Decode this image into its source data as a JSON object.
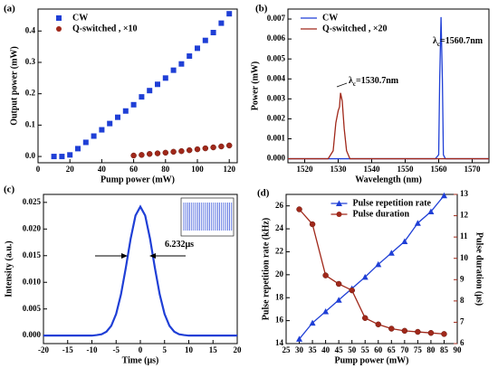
{
  "chart_data": [
    {
      "type": "scatter",
      "panel_label": "(a)",
      "xlabel": "Pump power (mW)",
      "ylabel": "Output power (mW)",
      "xlim": [
        0,
        125
      ],
      "xticks": [
        0,
        20,
        40,
        60,
        80,
        100,
        120
      ],
      "ylim": [
        -0.02,
        0.47
      ],
      "yticks": [
        {
          "value": 0,
          "label": "0.0"
        },
        0.1,
        0.2,
        0.3,
        0.4
      ],
      "legend": "upper left",
      "series": [
        {
          "name": "CW",
          "color": "#1f3fd6",
          "marker": "square",
          "x": [
            10,
            15,
            20,
            25,
            30,
            35,
            40,
            45,
            50,
            55,
            60,
            65,
            70,
            75,
            80,
            85,
            90,
            95,
            100,
            105,
            110,
            115,
            120
          ],
          "values": [
            0,
            0,
            0.005,
            0.025,
            0.045,
            0.065,
            0.085,
            0.105,
            0.125,
            0.145,
            0.165,
            0.19,
            0.21,
            0.23,
            0.25,
            0.275,
            0.295,
            0.32,
            0.345,
            0.37,
            0.395,
            0.425,
            0.455
          ]
        },
        {
          "name": "Q-switched , ×10",
          "color": "#a0281a",
          "marker": "circle",
          "x": [
            60,
            65,
            70,
            75,
            80,
            85,
            90,
            95,
            100,
            105,
            110,
            115,
            120
          ],
          "values": [
            0.003,
            0.005,
            0.008,
            0.01,
            0.012,
            0.015,
            0.017,
            0.02,
            0.023,
            0.026,
            0.029,
            0.032,
            0.035
          ]
        }
      ]
    },
    {
      "type": "line",
      "panel_label": "(b)",
      "xlabel": "Wavelength (nm)",
      "ylabel": "Power (mW)",
      "xlim": [
        1515,
        1575
      ],
      "xticks": [
        1520,
        1530,
        1540,
        1550,
        1560,
        1570
      ],
      "ylim": [
        -0.0002,
        0.0075
      ],
      "yticks": [
        {
          "value": 0,
          "label": "0.000"
        },
        0.001,
        0.002,
        0.003,
        0.004,
        0.005,
        0.006,
        0.007
      ],
      "legend": "upper left",
      "series": [
        {
          "name": "CW",
          "color": "#1f3fd6",
          "x": [
            1515,
            1559,
            1560,
            1560.3,
            1560.7,
            1561.1,
            1561.4,
            1562,
            1575
          ],
          "values": [
            0,
            0,
            0.0002,
            0.004,
            0.0071,
            0.004,
            0.0002,
            0,
            0
          ]
        },
        {
          "name": "Q-switched , ×20",
          "color": "#a0281a",
          "x": [
            1515,
            1527,
            1528.5,
            1529.3,
            1530,
            1530.4,
            1530.7,
            1531.2,
            1531.8,
            1532.5,
            1533.5,
            1575
          ],
          "values": [
            0,
            0,
            0.0004,
            0.0018,
            0.0024,
            0.0026,
            0.0033,
            0.0029,
            0.0015,
            0.0004,
            0,
            0
          ]
        }
      ],
      "annotations": [
        {
          "symbol": "λ",
          "sub": "c",
          "text": "=1560.7nm"
        },
        {
          "symbol": "λ",
          "sub": "c",
          "text": "=1530.7nm"
        }
      ]
    },
    {
      "type": "line",
      "panel_label": "(c)",
      "xlabel": "Time (μs)",
      "ylabel": "Intensity (a.u.)",
      "xlim": [
        -20,
        20
      ],
      "xticks": [
        -20,
        -15,
        -10,
        -5,
        0,
        5,
        10,
        15,
        20
      ],
      "ylim": [
        -0.0015,
        0.0265
      ],
      "yticks": [
        {
          "value": 0,
          "label": "0.000"
        },
        0.005,
        {
          "value": 0.01,
          "label": "0.010"
        },
        0.015,
        {
          "value": 0.02,
          "label": "0.020"
        },
        0.025
      ],
      "x": [
        -20,
        -19,
        -18,
        -17,
        -16,
        -15,
        -14,
        -13,
        -12,
        -11,
        -10,
        -9,
        -8,
        -7,
        -6,
        -5,
        -4,
        -3,
        -2,
        -1,
        0,
        1,
        2,
        3,
        4,
        5,
        6,
        7,
        8,
        9,
        10,
        11,
        12,
        13,
        14,
        15,
        16,
        17,
        18,
        19,
        20
      ],
      "series": [
        {
          "color": "#1f3fd6",
          "values": [
            0,
            0,
            0,
            0,
            0,
            0,
            0,
            0,
            0,
            0,
            0,
            0.0001,
            0.00025,
            0.00073,
            0.00185,
            0.00406,
            0.00772,
            0.01273,
            0.01819,
            0.02253,
            0.0242,
            0.02253,
            0.01819,
            0.01273,
            0.00772,
            0.00406,
            0.00185,
            0.00073,
            0.00025,
            0.0001,
            0,
            0,
            0,
            0,
            0,
            0,
            0,
            0,
            0,
            0,
            0
          ]
        }
      ],
      "annotations": [
        {
          "text": "6.232μs"
        }
      ]
    },
    {
      "type": "line",
      "panel_label": "(d)",
      "xlabel": "Pump power (mW)",
      "ylabel": "Pulse repetition rate (kHz)",
      "y2label": "Pulse duration (μs)",
      "xlim": [
        25,
        90
      ],
      "xticks": [
        25,
        30,
        35,
        40,
        45,
        50,
        55,
        60,
        65,
        70,
        75,
        80,
        85,
        90
      ],
      "ylim": [
        14,
        27
      ],
      "yticks": [
        14,
        16,
        18,
        20,
        22,
        24,
        26
      ],
      "y2lim": [
        6,
        13
      ],
      "y2ticks": [
        6,
        7,
        8,
        9,
        10,
        11,
        12,
        13
      ],
      "legend": "upper center",
      "x": [
        30,
        35,
        40,
        45,
        50,
        55,
        60,
        65,
        70,
        75,
        80,
        85
      ],
      "series": [
        {
          "name": "Pulse repetition rate",
          "color": "#1f3fd6",
          "marker": "triangle",
          "values": [
            14.4,
            15.8,
            16.8,
            17.8,
            18.8,
            19.8,
            20.9,
            21.9,
            22.9,
            24.5,
            25.5,
            26.9
          ]
        },
        {
          "name": "Pulse duration",
          "color": "#a0281a",
          "marker": "circle",
          "axis": "y2",
          "values": [
            12.3,
            11.6,
            9.2,
            8.8,
            8.5,
            7.2,
            6.9,
            6.7,
            6.6,
            6.55,
            6.5,
            6.45
          ]
        }
      ]
    }
  ]
}
